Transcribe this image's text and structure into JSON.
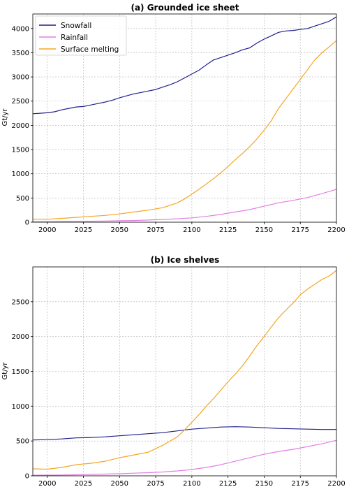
{
  "chart_data": [
    {
      "type": "line",
      "title": "(a) Grounded ice sheet",
      "ylabel": "Gt/yr",
      "xlabel": "",
      "xlim": [
        1990,
        2200
      ],
      "ylim": [
        0,
        4300
      ],
      "xticks": [
        2000,
        2025,
        2050,
        2075,
        2100,
        2125,
        2150,
        2175,
        2200
      ],
      "yticks": [
        0,
        500,
        1000,
        1500,
        2000,
        2500,
        3000,
        3500,
        4000
      ],
      "grid": true,
      "legend": "top-left",
      "series": [
        {
          "name": "Snowfall",
          "color": "#1f1f8c",
          "x": [
            1990,
            1995,
            2000,
            2005,
            2010,
            2015,
            2020,
            2025,
            2030,
            2035,
            2040,
            2045,
            2050,
            2055,
            2060,
            2065,
            2070,
            2075,
            2080,
            2085,
            2090,
            2095,
            2100,
            2105,
            2110,
            2115,
            2120,
            2125,
            2130,
            2135,
            2140,
            2145,
            2150,
            2155,
            2160,
            2165,
            2170,
            2175,
            2180,
            2185,
            2190,
            2195,
            2200
          ],
          "y": [
            2240,
            2250,
            2260,
            2280,
            2320,
            2350,
            2380,
            2390,
            2420,
            2450,
            2480,
            2520,
            2570,
            2610,
            2650,
            2680,
            2710,
            2740,
            2790,
            2840,
            2900,
            2980,
            3060,
            3140,
            3250,
            3350,
            3400,
            3450,
            3500,
            3560,
            3600,
            3700,
            3780,
            3850,
            3920,
            3950,
            3960,
            3980,
            4000,
            4050,
            4100,
            4150,
            4240
          ]
        },
        {
          "name": "Rainfall",
          "color": "#e27fe3",
          "x": [
            1990,
            2000,
            2010,
            2020,
            2030,
            2040,
            2050,
            2060,
            2070,
            2080,
            2090,
            2100,
            2110,
            2120,
            2130,
            2140,
            2150,
            2160,
            2170,
            2180,
            2190,
            2200
          ],
          "y": [
            10,
            12,
            15,
            18,
            20,
            25,
            30,
            35,
            45,
            55,
            70,
            90,
            120,
            160,
            210,
            260,
            330,
            400,
            450,
            510,
            590,
            680
          ]
        },
        {
          "name": "Surface melting",
          "color": "#f5a623",
          "x": [
            1990,
            2000,
            2010,
            2020,
            2030,
            2040,
            2050,
            2060,
            2070,
            2080,
            2090,
            2095,
            2100,
            2105,
            2110,
            2115,
            2120,
            2125,
            2130,
            2135,
            2140,
            2145,
            2150,
            2155,
            2160,
            2165,
            2170,
            2175,
            2180,
            2185,
            2190,
            2195,
            2200
          ],
          "y": [
            60,
            60,
            80,
            100,
            120,
            140,
            170,
            210,
            250,
            300,
            400,
            480,
            580,
            680,
            790,
            900,
            1020,
            1150,
            1290,
            1420,
            1560,
            1720,
            1900,
            2100,
            2350,
            2550,
            2750,
            2950,
            3150,
            3350,
            3500,
            3620,
            3750
          ]
        }
      ]
    },
    {
      "type": "line",
      "title": "(b) Ice shelves",
      "ylabel": "Gt/yr",
      "xlabel": "",
      "xlim": [
        1990,
        2200
      ],
      "ylim": [
        0,
        3000
      ],
      "xticks": [
        2000,
        2025,
        2050,
        2075,
        2100,
        2125,
        2150,
        2175,
        2200
      ],
      "yticks": [
        0,
        500,
        1000,
        1500,
        2000,
        2500
      ],
      "grid": true,
      "series": [
        {
          "name": "Snowfall",
          "color": "#1f1f8c",
          "x": [
            1990,
            2000,
            2010,
            2020,
            2030,
            2040,
            2050,
            2060,
            2070,
            2080,
            2090,
            2100,
            2110,
            2120,
            2130,
            2140,
            2150,
            2160,
            2170,
            2180,
            2190,
            2200
          ],
          "y": [
            515,
            520,
            530,
            545,
            550,
            560,
            575,
            590,
            605,
            620,
            645,
            670,
            685,
            700,
            705,
            700,
            690,
            680,
            675,
            670,
            665,
            665
          ]
        },
        {
          "name": "Rainfall",
          "color": "#e27fe3",
          "x": [
            1990,
            2000,
            2010,
            2020,
            2030,
            2040,
            2050,
            2060,
            2070,
            2080,
            2090,
            2100,
            2110,
            2120,
            2130,
            2140,
            2150,
            2160,
            2170,
            2180,
            2190,
            2200
          ],
          "y": [
            8,
            10,
            12,
            15,
            20,
            25,
            30,
            38,
            45,
            55,
            70,
            90,
            120,
            160,
            210,
            260,
            310,
            350,
            380,
            420,
            460,
            510
          ]
        },
        {
          "name": "Surface melting",
          "color": "#f5a623",
          "x": [
            1990,
            2000,
            2010,
            2020,
            2030,
            2040,
            2050,
            2060,
            2070,
            2080,
            2090,
            2095,
            2100,
            2105,
            2110,
            2115,
            2120,
            2125,
            2130,
            2135,
            2140,
            2145,
            2150,
            2155,
            2160,
            2165,
            2170,
            2175,
            2180,
            2185,
            2190,
            2195,
            2200
          ],
          "y": [
            100,
            95,
            120,
            160,
            180,
            210,
            260,
            300,
            340,
            440,
            560,
            660,
            770,
            880,
            1000,
            1110,
            1230,
            1350,
            1460,
            1580,
            1720,
            1870,
            2000,
            2140,
            2270,
            2380,
            2480,
            2600,
            2680,
            2750,
            2820,
            2870,
            2950
          ]
        }
      ]
    }
  ]
}
